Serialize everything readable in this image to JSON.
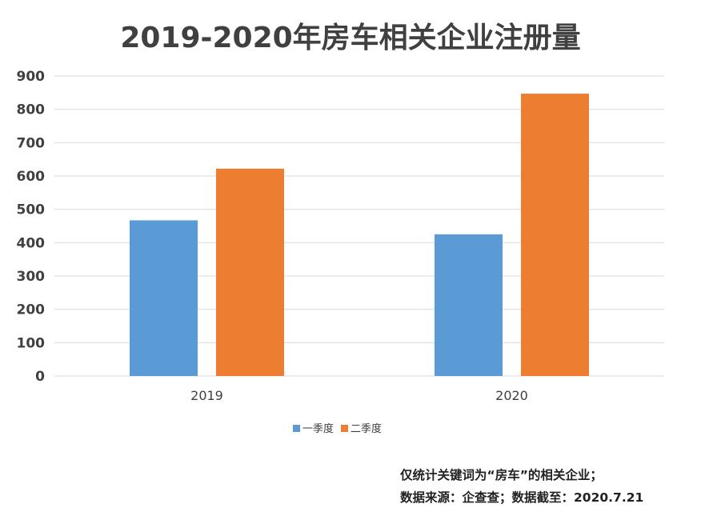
{
  "chart_data": {
    "type": "bar",
    "title": "2019-2020年房车相关企业注册量",
    "categories": [
      "2019",
      "2020"
    ],
    "series": [
      {
        "name": "一季度",
        "values": [
          467,
          425
        ],
        "color": "#5B9BD5"
      },
      {
        "name": "二季度",
        "values": [
          622,
          847
        ],
        "color": "#ED7D31"
      }
    ],
    "ylim": [
      0,
      900
    ],
    "yticks": [
      0,
      100,
      200,
      300,
      400,
      500,
      600,
      700,
      800,
      900
    ],
    "grid": true,
    "legend": "bottom"
  },
  "notes": [
    "仅统计关键词为“房车”的相关企业；",
    "数据来源：企查查；数据截至：2020.7.21"
  ]
}
